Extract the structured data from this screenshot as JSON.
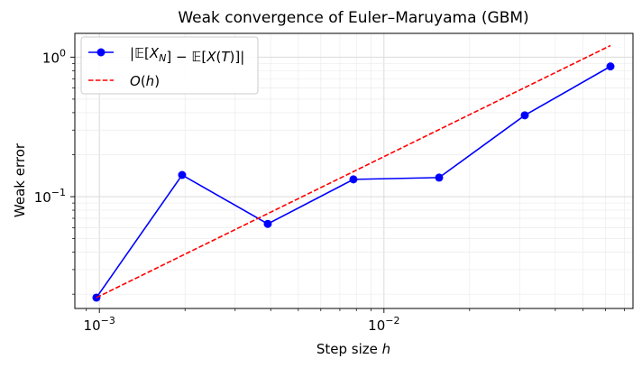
{
  "chart_data": {
    "type": "line",
    "title": "Weak convergence of Euler–Maruyama (GBM)",
    "xlabel": "Step size h",
    "ylabel": "Weak error",
    "xscale": "log",
    "yscale": "log",
    "xlim": [
      0.00082,
      0.075
    ],
    "ylim": [
      0.0158,
      1.48
    ],
    "grid": "both, major and minor",
    "legend_position": "upper-left",
    "x_ticks": [
      {
        "value": 0.001,
        "base": "10",
        "exp": "−3"
      },
      {
        "value": 0.01,
        "base": "10",
        "exp": "−2"
      }
    ],
    "y_ticks": [
      {
        "value": 0.1,
        "base": "10",
        "exp": "−1"
      },
      {
        "value": 1,
        "base": "10",
        "exp": "0"
      }
    ],
    "series": [
      {
        "name": "|𝔼[X_N] − 𝔼[X(T)]|",
        "style": "solid-markers",
        "color": "#0000ff",
        "x": [
          0.0009765625,
          0.001953125,
          0.00390625,
          0.0078125,
          0.015625,
          0.03125,
          0.0625
        ],
        "y": [
          0.0189,
          0.143,
          0.0638,
          0.133,
          0.137,
          0.383,
          0.858
        ]
      },
      {
        "name": "O(h)",
        "style": "dashed",
        "color": "#ff0000",
        "x": [
          0.0009765625,
          0.0625
        ],
        "y": [
          0.0189,
          1.21
        ]
      }
    ]
  }
}
